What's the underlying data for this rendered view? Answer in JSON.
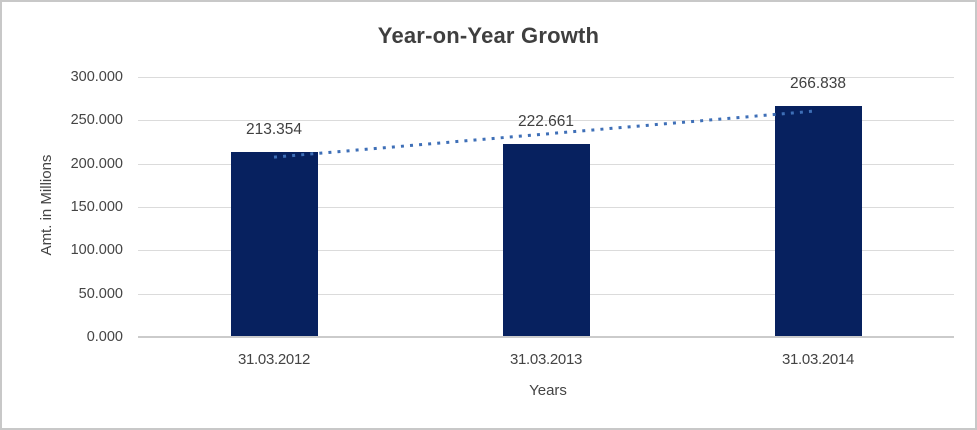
{
  "chart_data": {
    "type": "bar",
    "title": "Year-on-Year Growth",
    "xlabel": "Years",
    "ylabel": "Amt. in Millions",
    "categories": [
      "31.03.2012",
      "31.03.2013",
      "31.03.2014"
    ],
    "values": [
      213.354,
      222.661,
      266.838
    ],
    "data_labels": [
      "213.354",
      "222.661",
      "266.838"
    ],
    "y_ticks": [
      {
        "value": 0,
        "label": "0.000"
      },
      {
        "value": 50,
        "label": "50.000"
      },
      {
        "value": 100,
        "label": "100.000"
      },
      {
        "value": 150,
        "label": "150.000"
      },
      {
        "value": 200,
        "label": "200.000"
      },
      {
        "value": 250,
        "label": "250.000"
      },
      {
        "value": 300,
        "label": "300.000"
      }
    ],
    "ylim": [
      0,
      300
    ],
    "grid": true,
    "legend": "none",
    "trendline": {
      "type": "linear",
      "style": "dotted"
    },
    "colors": {
      "bar": "#07215f",
      "trendline": "#3e6fb7",
      "gridline": "#dbdbdb",
      "axis_line": "#cbcbcb",
      "text": "#404040",
      "border": "#c8c8c8",
      "background": "#ffffff"
    }
  }
}
